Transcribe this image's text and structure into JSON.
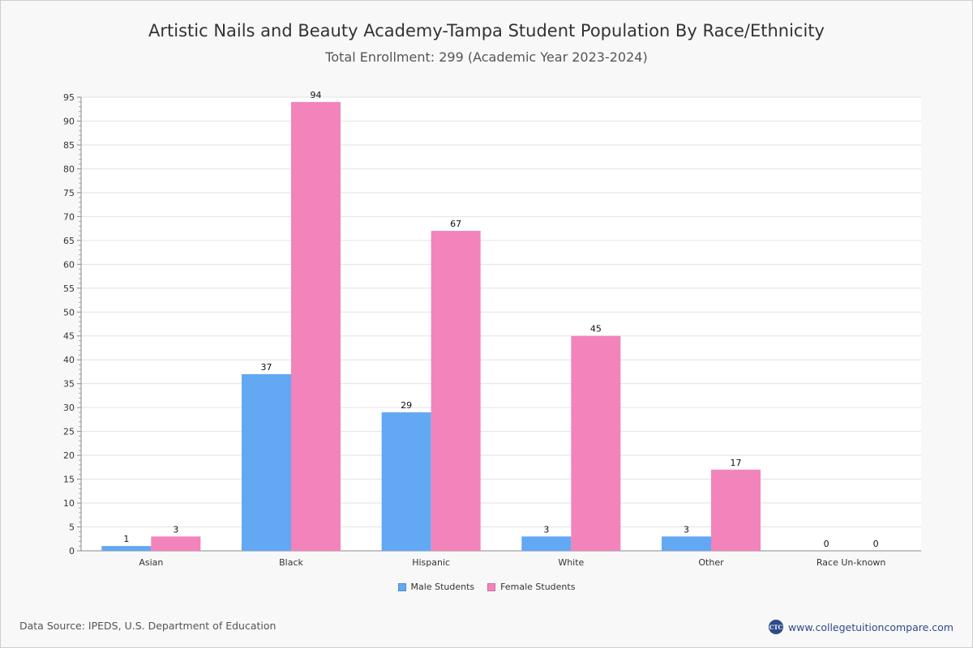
{
  "chart_data": {
    "type": "bar",
    "title": "Artistic Nails and Beauty Academy-Tampa Student Population By Race/Ethnicity",
    "subtitle": "Total Enrollment: 299 (Academic Year 2023-2024)",
    "categories": [
      "Asian",
      "Black",
      "Hispanic",
      "White",
      "Other",
      "Race Un-known"
    ],
    "series": [
      {
        "name": "Male Students",
        "values": [
          1,
          37,
          29,
          3,
          3,
          0
        ],
        "color": "#62a8f3"
      },
      {
        "name": "Female Students",
        "values": [
          3,
          94,
          67,
          45,
          17,
          0
        ],
        "color": "#f383bb"
      }
    ],
    "ylim": [
      0,
      95
    ],
    "yticks": [
      0,
      5,
      10,
      15,
      20,
      25,
      30,
      35,
      40,
      45,
      50,
      55,
      60,
      65,
      70,
      75,
      80,
      85,
      90,
      95
    ],
    "xlabel": "",
    "ylabel": "",
    "grid": true,
    "legend": "bottom-center"
  },
  "footer": {
    "source": "Data Source: IPEDS, U.S. Department of Education",
    "brand": "www.collegetuitioncompare.com",
    "logo_text": "CTC"
  }
}
